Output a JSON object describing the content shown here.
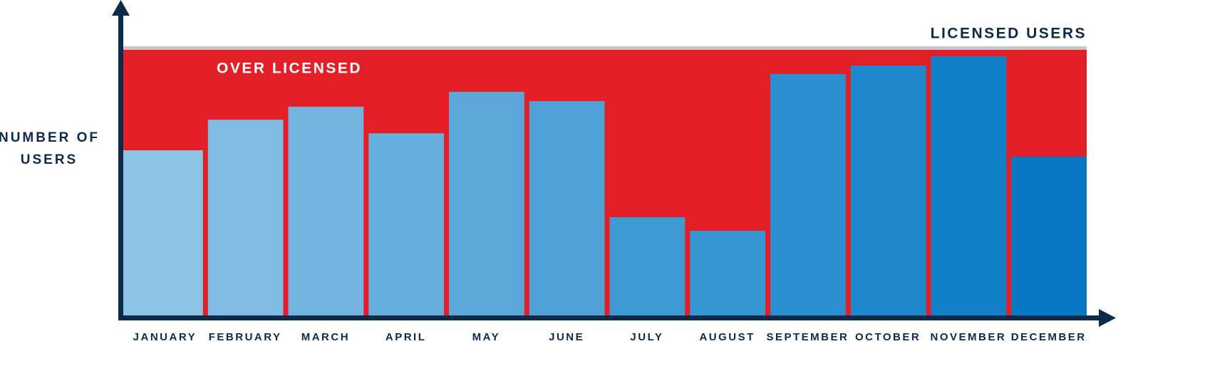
{
  "chart_data": {
    "type": "bar",
    "y_label": "NUMBER OF USERS",
    "threshold_label": "LICENSED USERS",
    "region_label": "OVER LICENSED",
    "licensed_users": 100,
    "categories": [
      "JANUARY",
      "FEBRUARY",
      "MARCH",
      "APRIL",
      "MAY",
      "JUNE",
      "JULY",
      "AUGUST",
      "SEPTEMBER",
      "OCTOBER",
      "NOVEMBER",
      "DECEMBER"
    ],
    "values": [
      62.2,
      73.7,
      78.6,
      68.6,
      84.2,
      80.7,
      37.0,
      31.9,
      90.9,
      94.1,
      97.6,
      59.8
    ],
    "colors": [
      "#8dc3e5",
      "#7fbbe2",
      "#72b4df",
      "#66afdc",
      "#5aa8d9",
      "#4ea2d6",
      "#3e9ad3",
      "#3696d2",
      "#2a8fd0",
      "#1f88cd",
      "#1280c9",
      "#0878c5"
    ],
    "region_color": "#e21f26",
    "threshold_color": "#c8c8cc",
    "axis_color": "#0d2a4a",
    "ylim": [
      0,
      100
    ]
  }
}
